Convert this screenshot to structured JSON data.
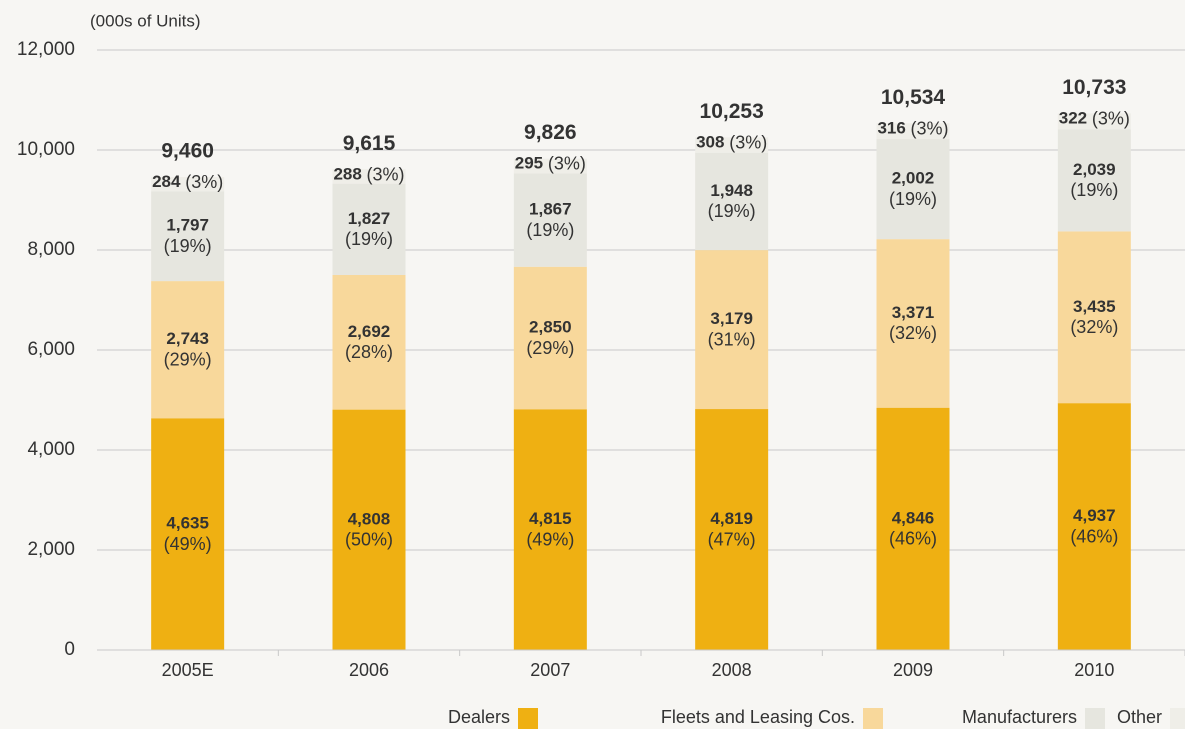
{
  "chart_data": {
    "type": "stacked_bar",
    "y_label": "(000s of Units)",
    "categories": [
      "2005E",
      "2006",
      "2007",
      "2008",
      "2009",
      "2010"
    ],
    "series": [
      {
        "name": "Dealers",
        "color": "#efb012",
        "values": [
          4635,
          4808,
          4815,
          4819,
          4846,
          4937
        ],
        "value_labels": [
          "4,635",
          "4,808",
          "4,815",
          "4,819",
          "4,846",
          "4,937"
        ],
        "percent_labels": [
          "(49%)",
          "(50%)",
          "(49%)",
          "(47%)",
          "(46%)",
          "(46%)"
        ]
      },
      {
        "name": "Fleets and Leasing Cos.",
        "color": "#f8d89b",
        "values": [
          2743,
          2692,
          2850,
          3179,
          3371,
          3435
        ],
        "value_labels": [
          "2,743",
          "2,692",
          "2,850",
          "3,179",
          "3,371",
          "3,435"
        ],
        "percent_labels": [
          "(29%)",
          "(28%)",
          "(29%)",
          "(31%)",
          "(32%)",
          "(32%)"
        ]
      },
      {
        "name": "Manufacturers",
        "color": "#e6e6df",
        "values": [
          1797,
          1827,
          1867,
          1948,
          2002,
          2039
        ],
        "value_labels": [
          "1,797",
          "1,827",
          "1,867",
          "1,948",
          "2,002",
          "2,039"
        ],
        "percent_labels": [
          "(19%)",
          "(19%)",
          "(19%)",
          "(19%)",
          "(19%)",
          "(19%)"
        ]
      },
      {
        "name": "Other",
        "color": "#efeee8",
        "values": [
          284,
          288,
          295,
          308,
          316,
          322
        ],
        "percent_labels": [
          "(3%)",
          "(3%)",
          "(3%)",
          "(3%)",
          "(3%)",
          "(3%)"
        ]
      }
    ],
    "totals": {
      "values": [
        9460,
        9615,
        9826,
        10253,
        10534,
        10733
      ],
      "value_labels": [
        "9,460",
        "9,615",
        "9,826",
        "10,253",
        "10,534",
        "10,733"
      ]
    },
    "ylim": [
      0,
      12000
    ],
    "yticks": [
      0,
      {
        "value": 2000,
        "label": "2,000"
      },
      {
        "value": 4000,
        "label": "4,000"
      },
      {
        "value": 6000,
        "label": "6,000"
      },
      {
        "value": 8000,
        "label": "8,000"
      },
      {
        "value": 10000,
        "label": "10,000"
      },
      {
        "value": 12000,
        "label": "12,000"
      }
    ],
    "grid": true
  }
}
